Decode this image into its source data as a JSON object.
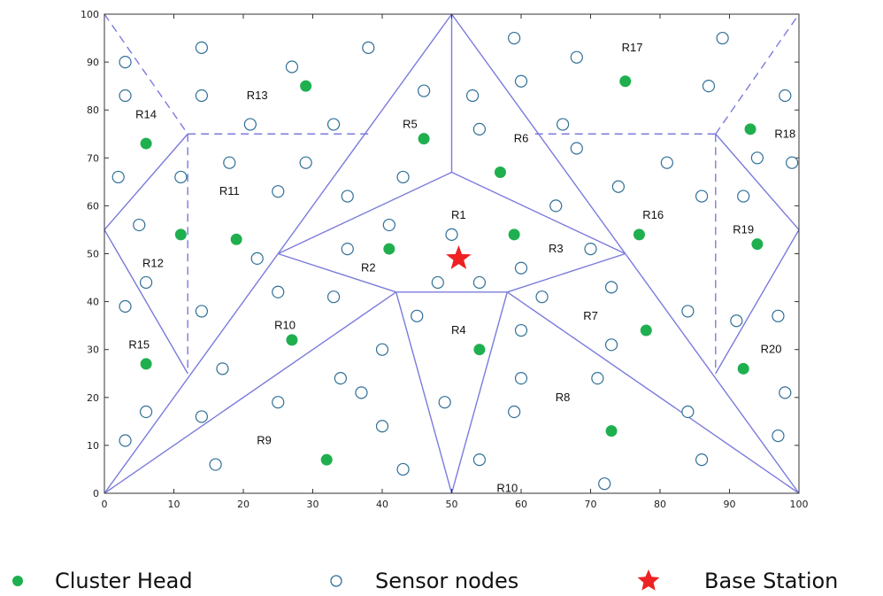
{
  "chart_data": {
    "type": "scatter",
    "xlim": [
      0,
      100
    ],
    "ylim": [
      0,
      100
    ],
    "xticks": [
      "0",
      "10",
      "20",
      "30",
      "40",
      "50",
      "60",
      "70",
      "80",
      "90",
      "100"
    ],
    "yticks": [
      "0",
      "10",
      "20",
      "30",
      "40",
      "50",
      "60",
      "70",
      "80",
      "90",
      "100"
    ],
    "grid": false,
    "legend_position": "bottom",
    "legend": {
      "cluster_head": "Cluster Head",
      "sensor_nodes": "Sensor nodes",
      "base_station": "Base Station"
    },
    "colors": {
      "region_line": "#7b7bdc",
      "cluster_head": "#1faf4f",
      "sensor_node": "#2f6f96",
      "base_station": "#ee2222",
      "axis": "#333333"
    },
    "base_station": {
      "x": 51,
      "y": 49
    },
    "region_labels": [
      {
        "text": "R1",
        "x": 51,
        "y": 58
      },
      {
        "text": "R2",
        "x": 38,
        "y": 47
      },
      {
        "text": "R3",
        "x": 65,
        "y": 51
      },
      {
        "text": "R4",
        "x": 51,
        "y": 34
      },
      {
        "text": "R5",
        "x": 44,
        "y": 77
      },
      {
        "text": "R6",
        "x": 60,
        "y": 74
      },
      {
        "text": "R7",
        "x": 70,
        "y": 37
      },
      {
        "text": "R8",
        "x": 66,
        "y": 20
      },
      {
        "text": "R9",
        "x": 23,
        "y": 11
      },
      {
        "text": "R10",
        "x": 26,
        "y": 35
      },
      {
        "text": "R10",
        "x": 58,
        "y": 1
      },
      {
        "text": "R11",
        "x": 18,
        "y": 63
      },
      {
        "text": "R12",
        "x": 7,
        "y": 48
      },
      {
        "text": "R13",
        "x": 22,
        "y": 83
      },
      {
        "text": "R14",
        "x": 6,
        "y": 79
      },
      {
        "text": "R15",
        "x": 5,
        "y": 31
      },
      {
        "text": "R16",
        "x": 79,
        "y": 58
      },
      {
        "text": "R17",
        "x": 76,
        "y": 93
      },
      {
        "text": "R18",
        "x": 98,
        "y": 75
      },
      {
        "text": "R19",
        "x": 92,
        "y": 55
      },
      {
        "text": "R20",
        "x": 96,
        "y": 30
      }
    ],
    "region_segments_solid": [
      [
        [
          0,
          0
        ],
        [
          50,
          100
        ]
      ],
      [
        [
          50,
          100
        ],
        [
          100,
          0
        ]
      ],
      [
        [
          50,
          100
        ],
        [
          50,
          67
        ]
      ],
      [
        [
          50,
          67
        ],
        [
          25,
          50
        ]
      ],
      [
        [
          50,
          67
        ],
        [
          75,
          50
        ]
      ],
      [
        [
          25,
          50
        ],
        [
          42,
          42
        ]
      ],
      [
        [
          75,
          50
        ],
        [
          58,
          42
        ]
      ],
      [
        [
          42,
          42
        ],
        [
          58,
          42
        ]
      ],
      [
        [
          42,
          42
        ],
        [
          50,
          0
        ]
      ],
      [
        [
          58,
          42
        ],
        [
          50,
          0
        ]
      ],
      [
        [
          42,
          42
        ],
        [
          0,
          0
        ]
      ],
      [
        [
          58,
          42
        ],
        [
          100,
          0
        ]
      ],
      [
        [
          0,
          55
        ],
        [
          12,
          75
        ]
      ],
      [
        [
          0,
          55
        ],
        [
          12,
          25
        ]
      ],
      [
        [
          100,
          55
        ],
        [
          88,
          75
        ]
      ],
      [
        [
          100,
          55
        ],
        [
          88,
          25
        ]
      ]
    ],
    "region_segments_dashed": [
      [
        [
          0,
          100
        ],
        [
          12,
          75
        ]
      ],
      [
        [
          12,
          75
        ],
        [
          38,
          75
        ]
      ],
      [
        [
          12,
          75
        ],
        [
          12,
          25
        ]
      ],
      [
        [
          62,
          75
        ],
        [
          88,
          75
        ]
      ],
      [
        [
          88,
          75
        ],
        [
          88,
          25
        ]
      ],
      [
        [
          88,
          75
        ],
        [
          100,
          100
        ]
      ]
    ],
    "cluster_heads": [
      {
        "x": 29,
        "y": 85
      },
      {
        "x": 75,
        "y": 86
      },
      {
        "x": 93,
        "y": 76
      },
      {
        "x": 6,
        "y": 73
      },
      {
        "x": 46,
        "y": 74
      },
      {
        "x": 57,
        "y": 67
      },
      {
        "x": 11,
        "y": 54
      },
      {
        "x": 19,
        "y": 53
      },
      {
        "x": 41,
        "y": 51
      },
      {
        "x": 59,
        "y": 54
      },
      {
        "x": 77,
        "y": 54
      },
      {
        "x": 94,
        "y": 52
      },
      {
        "x": 27,
        "y": 32
      },
      {
        "x": 54,
        "y": 30
      },
      {
        "x": 78,
        "y": 34
      },
      {
        "x": 6,
        "y": 27
      },
      {
        "x": 92,
        "y": 26
      },
      {
        "x": 73,
        "y": 13
      },
      {
        "x": 32,
        "y": 7
      }
    ],
    "sensor_nodes": [
      {
        "x": 14,
        "y": 93
      },
      {
        "x": 38,
        "y": 93
      },
      {
        "x": 59,
        "y": 95
      },
      {
        "x": 68,
        "y": 91
      },
      {
        "x": 89,
        "y": 95
      },
      {
        "x": 3,
        "y": 90
      },
      {
        "x": 27,
        "y": 89
      },
      {
        "x": 3,
        "y": 83
      },
      {
        "x": 14,
        "y": 83
      },
      {
        "x": 46,
        "y": 84
      },
      {
        "x": 53,
        "y": 83
      },
      {
        "x": 60,
        "y": 86
      },
      {
        "x": 87,
        "y": 85
      },
      {
        "x": 98,
        "y": 83
      },
      {
        "x": 21,
        "y": 77
      },
      {
        "x": 33,
        "y": 77
      },
      {
        "x": 54,
        "y": 76
      },
      {
        "x": 66,
        "y": 77
      },
      {
        "x": 68,
        "y": 72
      },
      {
        "x": 18,
        "y": 69
      },
      {
        "x": 29,
        "y": 69
      },
      {
        "x": 81,
        "y": 69
      },
      {
        "x": 94,
        "y": 70
      },
      {
        "x": 99,
        "y": 69
      },
      {
        "x": 2,
        "y": 66
      },
      {
        "x": 11,
        "y": 66
      },
      {
        "x": 43,
        "y": 66
      },
      {
        "x": 25,
        "y": 63
      },
      {
        "x": 35,
        "y": 62
      },
      {
        "x": 74,
        "y": 64
      },
      {
        "x": 86,
        "y": 62
      },
      {
        "x": 92,
        "y": 62
      },
      {
        "x": 65,
        "y": 60
      },
      {
        "x": 5,
        "y": 56
      },
      {
        "x": 41,
        "y": 56
      },
      {
        "x": 50,
        "y": 54
      },
      {
        "x": 22,
        "y": 49
      },
      {
        "x": 35,
        "y": 51
      },
      {
        "x": 60,
        "y": 47
      },
      {
        "x": 70,
        "y": 51
      },
      {
        "x": 6,
        "y": 44
      },
      {
        "x": 48,
        "y": 44
      },
      {
        "x": 54,
        "y": 44
      },
      {
        "x": 25,
        "y": 42
      },
      {
        "x": 33,
        "y": 41
      },
      {
        "x": 63,
        "y": 41
      },
      {
        "x": 73,
        "y": 43
      },
      {
        "x": 3,
        "y": 39
      },
      {
        "x": 14,
        "y": 38
      },
      {
        "x": 45,
        "y": 37
      },
      {
        "x": 84,
        "y": 38
      },
      {
        "x": 91,
        "y": 36
      },
      {
        "x": 97,
        "y": 37
      },
      {
        "x": 60,
        "y": 34
      },
      {
        "x": 40,
        "y": 30
      },
      {
        "x": 73,
        "y": 31
      },
      {
        "x": 17,
        "y": 26
      },
      {
        "x": 34,
        "y": 24
      },
      {
        "x": 60,
        "y": 24
      },
      {
        "x": 71,
        "y": 24
      },
      {
        "x": 37,
        "y": 21
      },
      {
        "x": 98,
        "y": 21
      },
      {
        "x": 25,
        "y": 19
      },
      {
        "x": 49,
        "y": 19
      },
      {
        "x": 6,
        "y": 17
      },
      {
        "x": 59,
        "y": 17
      },
      {
        "x": 84,
        "y": 17
      },
      {
        "x": 14,
        "y": 16
      },
      {
        "x": 40,
        "y": 14
      },
      {
        "x": 3,
        "y": 11
      },
      {
        "x": 97,
        "y": 12
      },
      {
        "x": 16,
        "y": 6
      },
      {
        "x": 54,
        "y": 7
      },
      {
        "x": 86,
        "y": 7
      },
      {
        "x": 43,
        "y": 5
      },
      {
        "x": 72,
        "y": 2
      }
    ]
  }
}
